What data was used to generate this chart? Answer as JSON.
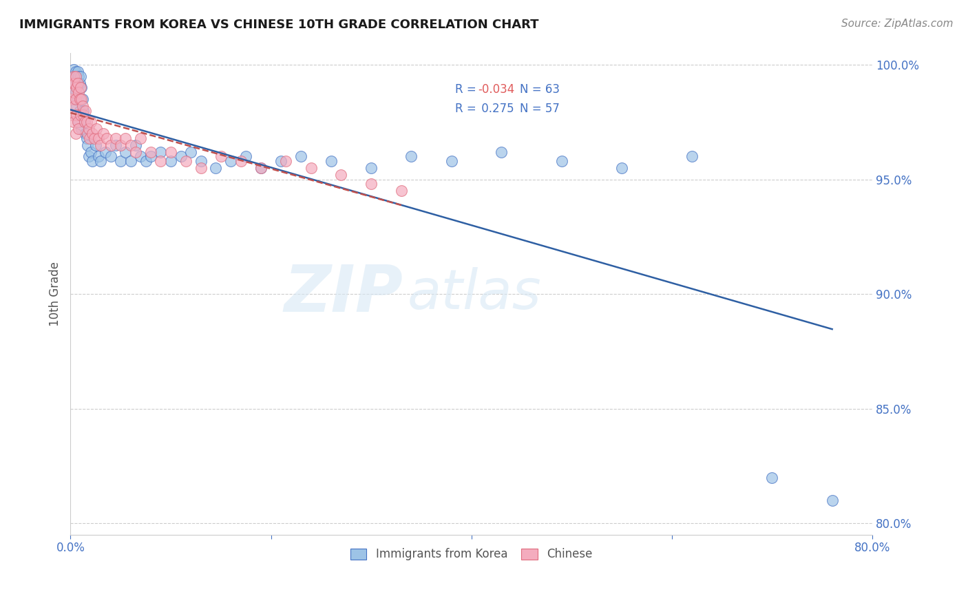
{
  "title": "IMMIGRANTS FROM KOREA VS CHINESE 10TH GRADE CORRELATION CHART",
  "source": "Source: ZipAtlas.com",
  "ylabel": "10th Grade",
  "watermark_zip": "ZIP",
  "watermark_atlas": "atlas",
  "xlim": [
    0.0,
    0.8
  ],
  "ylim": [
    0.795,
    1.005
  ],
  "yticks": [
    0.8,
    0.85,
    0.9,
    0.95,
    1.0
  ],
  "ytick_labels_right": [
    "80.0%",
    "85.0%",
    "90.0%",
    "95.0%",
    "100.0%"
  ],
  "xticks": [
    0.0,
    0.2,
    0.4,
    0.6,
    0.8
  ],
  "xtick_labels": [
    "0.0%",
    "",
    "",
    "",
    "80.0%"
  ],
  "legend_r_korea": "-0.034",
  "legend_n_korea": "63",
  "legend_r_chinese": "0.275",
  "legend_n_chinese": "57",
  "korea_color": "#9dc3e6",
  "chinese_color": "#f4acbe",
  "korea_edge_color": "#4472c4",
  "chinese_edge_color": "#e06b7d",
  "korea_line_color": "#2e5fa3",
  "chinese_line_color": "#c0504d",
  "korea_x": [
    0.001,
    0.002,
    0.003,
    0.003,
    0.004,
    0.004,
    0.005,
    0.005,
    0.006,
    0.006,
    0.007,
    0.007,
    0.008,
    0.008,
    0.009,
    0.009,
    0.01,
    0.01,
    0.011,
    0.011,
    0.012,
    0.013,
    0.014,
    0.015,
    0.016,
    0.017,
    0.018,
    0.02,
    0.022,
    0.025,
    0.028,
    0.03,
    0.035,
    0.04,
    0.045,
    0.05,
    0.055,
    0.06,
    0.065,
    0.07,
    0.075,
    0.08,
    0.09,
    0.1,
    0.11,
    0.12,
    0.13,
    0.145,
    0.16,
    0.175,
    0.19,
    0.21,
    0.23,
    0.26,
    0.3,
    0.34,
    0.38,
    0.43,
    0.49,
    0.55,
    0.62,
    0.7,
    0.76
  ],
  "korea_y": [
    0.99,
    0.995,
    0.998,
    0.992,
    0.995,
    0.985,
    0.997,
    0.988,
    0.993,
    0.982,
    0.997,
    0.985,
    0.995,
    0.975,
    0.992,
    0.98,
    0.995,
    0.978,
    0.99,
    0.972,
    0.985,
    0.98,
    0.975,
    0.97,
    0.968,
    0.965,
    0.96,
    0.962,
    0.958,
    0.965,
    0.96,
    0.958,
    0.962,
    0.96,
    0.965,
    0.958,
    0.962,
    0.958,
    0.965,
    0.96,
    0.958,
    0.96,
    0.962,
    0.958,
    0.96,
    0.962,
    0.958,
    0.955,
    0.958,
    0.96,
    0.955,
    0.958,
    0.96,
    0.958,
    0.955,
    0.96,
    0.958,
    0.962,
    0.958,
    0.955,
    0.96,
    0.82,
    0.81
  ],
  "chinese_x": [
    0.001,
    0.002,
    0.002,
    0.003,
    0.003,
    0.003,
    0.004,
    0.004,
    0.005,
    0.005,
    0.005,
    0.006,
    0.006,
    0.007,
    0.007,
    0.008,
    0.008,
    0.009,
    0.01,
    0.01,
    0.011,
    0.012,
    0.013,
    0.014,
    0.015,
    0.016,
    0.017,
    0.018,
    0.019,
    0.02,
    0.022,
    0.024,
    0.026,
    0.028,
    0.03,
    0.033,
    0.036,
    0.04,
    0.045,
    0.05,
    0.055,
    0.06,
    0.065,
    0.07,
    0.08,
    0.09,
    0.1,
    0.115,
    0.13,
    0.15,
    0.17,
    0.19,
    0.215,
    0.24,
    0.27,
    0.3,
    0.33
  ],
  "chinese_y": [
    0.985,
    0.992,
    0.978,
    0.995,
    0.988,
    0.975,
    0.992,
    0.982,
    0.995,
    0.985,
    0.97,
    0.99,
    0.978,
    0.992,
    0.975,
    0.988,
    0.972,
    0.985,
    0.99,
    0.978,
    0.985,
    0.982,
    0.978,
    0.975,
    0.98,
    0.975,
    0.97,
    0.972,
    0.968,
    0.975,
    0.97,
    0.968,
    0.972,
    0.968,
    0.965,
    0.97,
    0.968,
    0.965,
    0.968,
    0.965,
    0.968,
    0.965,
    0.962,
    0.968,
    0.962,
    0.958,
    0.962,
    0.958,
    0.955,
    0.96,
    0.958,
    0.955,
    0.958,
    0.955,
    0.952,
    0.948,
    0.945
  ],
  "background_color": "#ffffff",
  "grid_color": "#cccccc"
}
